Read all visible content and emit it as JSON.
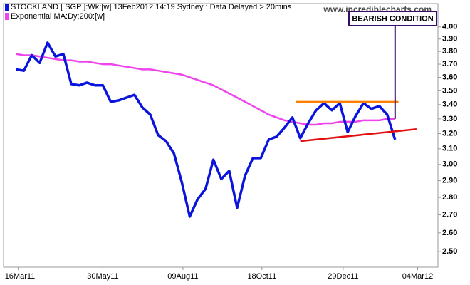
{
  "chart_data": {
    "type": "line",
    "title": "STOCKLAND [ SGP ]:Wk:[w]  13Feb2012 14:19 Sydney : Data Delayed > 20mins",
    "watermark": "www.incrediblecharts.com",
    "log_scale": true,
    "x": [
      "2011-03-14",
      "2011-03-21",
      "2011-03-28",
      "2011-04-04",
      "2011-04-11",
      "2011-04-18",
      "2011-04-25",
      "2011-05-02",
      "2011-05-09",
      "2011-05-16",
      "2011-05-23",
      "2011-05-30",
      "2011-06-06",
      "2011-06-13",
      "2011-06-20",
      "2011-06-27",
      "2011-07-04",
      "2011-07-11",
      "2011-07-18",
      "2011-07-25",
      "2011-08-01",
      "2011-08-08",
      "2011-08-15",
      "2011-08-22",
      "2011-08-29",
      "2011-09-05",
      "2011-09-12",
      "2011-09-19",
      "2011-09-26",
      "2011-10-03",
      "2011-10-10",
      "2011-10-17",
      "2011-10-24",
      "2011-10-31",
      "2011-11-07",
      "2011-11-14",
      "2011-11-21",
      "2011-11-28",
      "2011-12-05",
      "2011-12-12",
      "2011-12-19",
      "2011-12-26",
      "2012-01-02",
      "2012-01-09",
      "2012-01-16",
      "2012-01-23",
      "2012-01-30",
      "2012-02-06",
      "2012-02-13"
    ],
    "series": [
      {
        "name": "STOCKLAND [ SGP ]:Wk:[w]  13Feb2012 14:19 Sydney : Data Delayed > 20mins",
        "color": "#0a14dc",
        "width": 3.5,
        "values": [
          3.66,
          3.65,
          3.77,
          3.71,
          3.87,
          3.76,
          3.78,
          3.55,
          3.54,
          3.56,
          3.54,
          3.54,
          3.42,
          3.43,
          3.45,
          3.47,
          3.38,
          3.33,
          3.19,
          3.15,
          3.07,
          2.89,
          2.69,
          2.79,
          2.85,
          3.03,
          2.91,
          2.96,
          2.74,
          2.93,
          3.04,
          3.04,
          3.16,
          3.18,
          3.24,
          3.31,
          3.17,
          3.27,
          3.36,
          3.41,
          3.36,
          3.41,
          3.21,
          3.32,
          3.41,
          3.37,
          3.39,
          3.33,
          3.16
        ]
      },
      {
        "name": "Exponential MA:Dy:200:[w]",
        "color": "#ee44ee",
        "width": 2.5,
        "values": [
          3.78,
          3.77,
          3.77,
          3.76,
          3.75,
          3.74,
          3.73,
          3.73,
          3.72,
          3.72,
          3.71,
          3.7,
          3.7,
          3.69,
          3.68,
          3.67,
          3.66,
          3.66,
          3.65,
          3.64,
          3.63,
          3.62,
          3.6,
          3.58,
          3.56,
          3.54,
          3.51,
          3.48,
          3.45,
          3.42,
          3.39,
          3.36,
          3.33,
          3.31,
          3.29,
          3.28,
          3.27,
          3.26,
          3.26,
          3.27,
          3.27,
          3.28,
          3.28,
          3.28,
          3.29,
          3.29,
          3.29,
          3.3,
          3.3
        ]
      }
    ],
    "trend_lines": [
      {
        "color": "#ff8000",
        "x": [
          "2011-11-17",
          "2012-02-16"
        ],
        "values": [
          3.42,
          3.42
        ]
      },
      {
        "color": "#e01010",
        "x": [
          "2011-11-21",
          "2012-03-03"
        ],
        "values": [
          3.15,
          3.23
        ]
      }
    ],
    "annotation": {
      "text": "BEARISH CONDITION",
      "color": "#3a0a6a",
      "x": "2012-02-13",
      "y": 3.3
    },
    "xlim": [
      "2011-03-03",
      "2012-03-22"
    ],
    "xticks": [
      {
        "value": "2011-03-16",
        "label": "16Mar11"
      },
      {
        "value": "2011-05-30",
        "label": "30May11"
      },
      {
        "value": "2011-08-09",
        "label": "09Aug11"
      },
      {
        "value": "2011-10-18",
        "label": "18Oct11"
      },
      {
        "value": "2011-12-29",
        "label": "29Dec11"
      },
      {
        "value": "2012-03-04",
        "label": "04Mar12"
      }
    ],
    "ylim": [
      2.42,
      4.2
    ],
    "yticks": [
      {
        "value": 2.5,
        "label": "2.50"
      },
      {
        "value": 2.6,
        "label": "2.60"
      },
      {
        "value": 2.7,
        "label": "2.70"
      },
      {
        "value": 2.8,
        "label": "2.80"
      },
      {
        "value": 2.9,
        "label": "2.90"
      },
      {
        "value": 3.0,
        "label": "3.00"
      },
      {
        "value": 3.1,
        "label": "3.10"
      },
      {
        "value": 3.2,
        "label": "3.20"
      },
      {
        "value": 3.3,
        "label": "3.30"
      },
      {
        "value": 3.4,
        "label": "3.40"
      },
      {
        "value": 3.5,
        "label": "3.50"
      },
      {
        "value": 3.6,
        "label": "3.60"
      },
      {
        "value": 3.7,
        "label": "3.70"
      },
      {
        "value": 3.8,
        "label": "3.80"
      },
      {
        "value": 3.9,
        "label": "3.90"
      },
      {
        "value": 4.0,
        "label": "4.00"
      }
    ]
  }
}
